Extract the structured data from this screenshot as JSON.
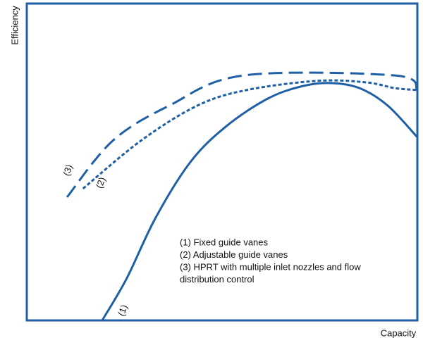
{
  "chart_data": {
    "type": "line",
    "x_label": "Capacity",
    "y_label": "Efficiency",
    "color": "#1f5fa6",
    "xlim": [
      0,
      100
    ],
    "ylim": [
      0,
      100
    ],
    "series": [
      {
        "name": "(1)",
        "style": "solid",
        "x": [
          19.3,
          25.6,
          32.9,
          41.9,
          50.9,
          61.7,
          70.8,
          78,
          85.2,
          92.4,
          100
        ],
        "values": [
          0,
          13.3,
          32.2,
          50,
          61.1,
          70,
          74,
          74.9,
          73.3,
          67.8,
          57.8
        ]
      },
      {
        "name": "(2)",
        "style": "dotted",
        "x": [
          14.4,
          29.2,
          43.7,
          56.3,
          74.4,
          87,
          94.2,
          100
        ],
        "values": [
          41.6,
          56.7,
          67.8,
          72.7,
          75.6,
          75.1,
          73.3,
          72.7
        ]
      },
      {
        "name": "(3)",
        "style": "dashed",
        "x": [
          10.3,
          22,
          36.5,
          55.4,
          94.2,
          100
        ],
        "values": [
          38.9,
          56.7,
          67.8,
          77.3,
          77.3,
          72.7
        ]
      }
    ],
    "annotations": [
      "(1) Fixed guide vanes",
      "(2) Adjustable guide vanes",
      "(3) HPRT with multiple inlet nozzles and flow",
      "distribution control"
    ]
  }
}
